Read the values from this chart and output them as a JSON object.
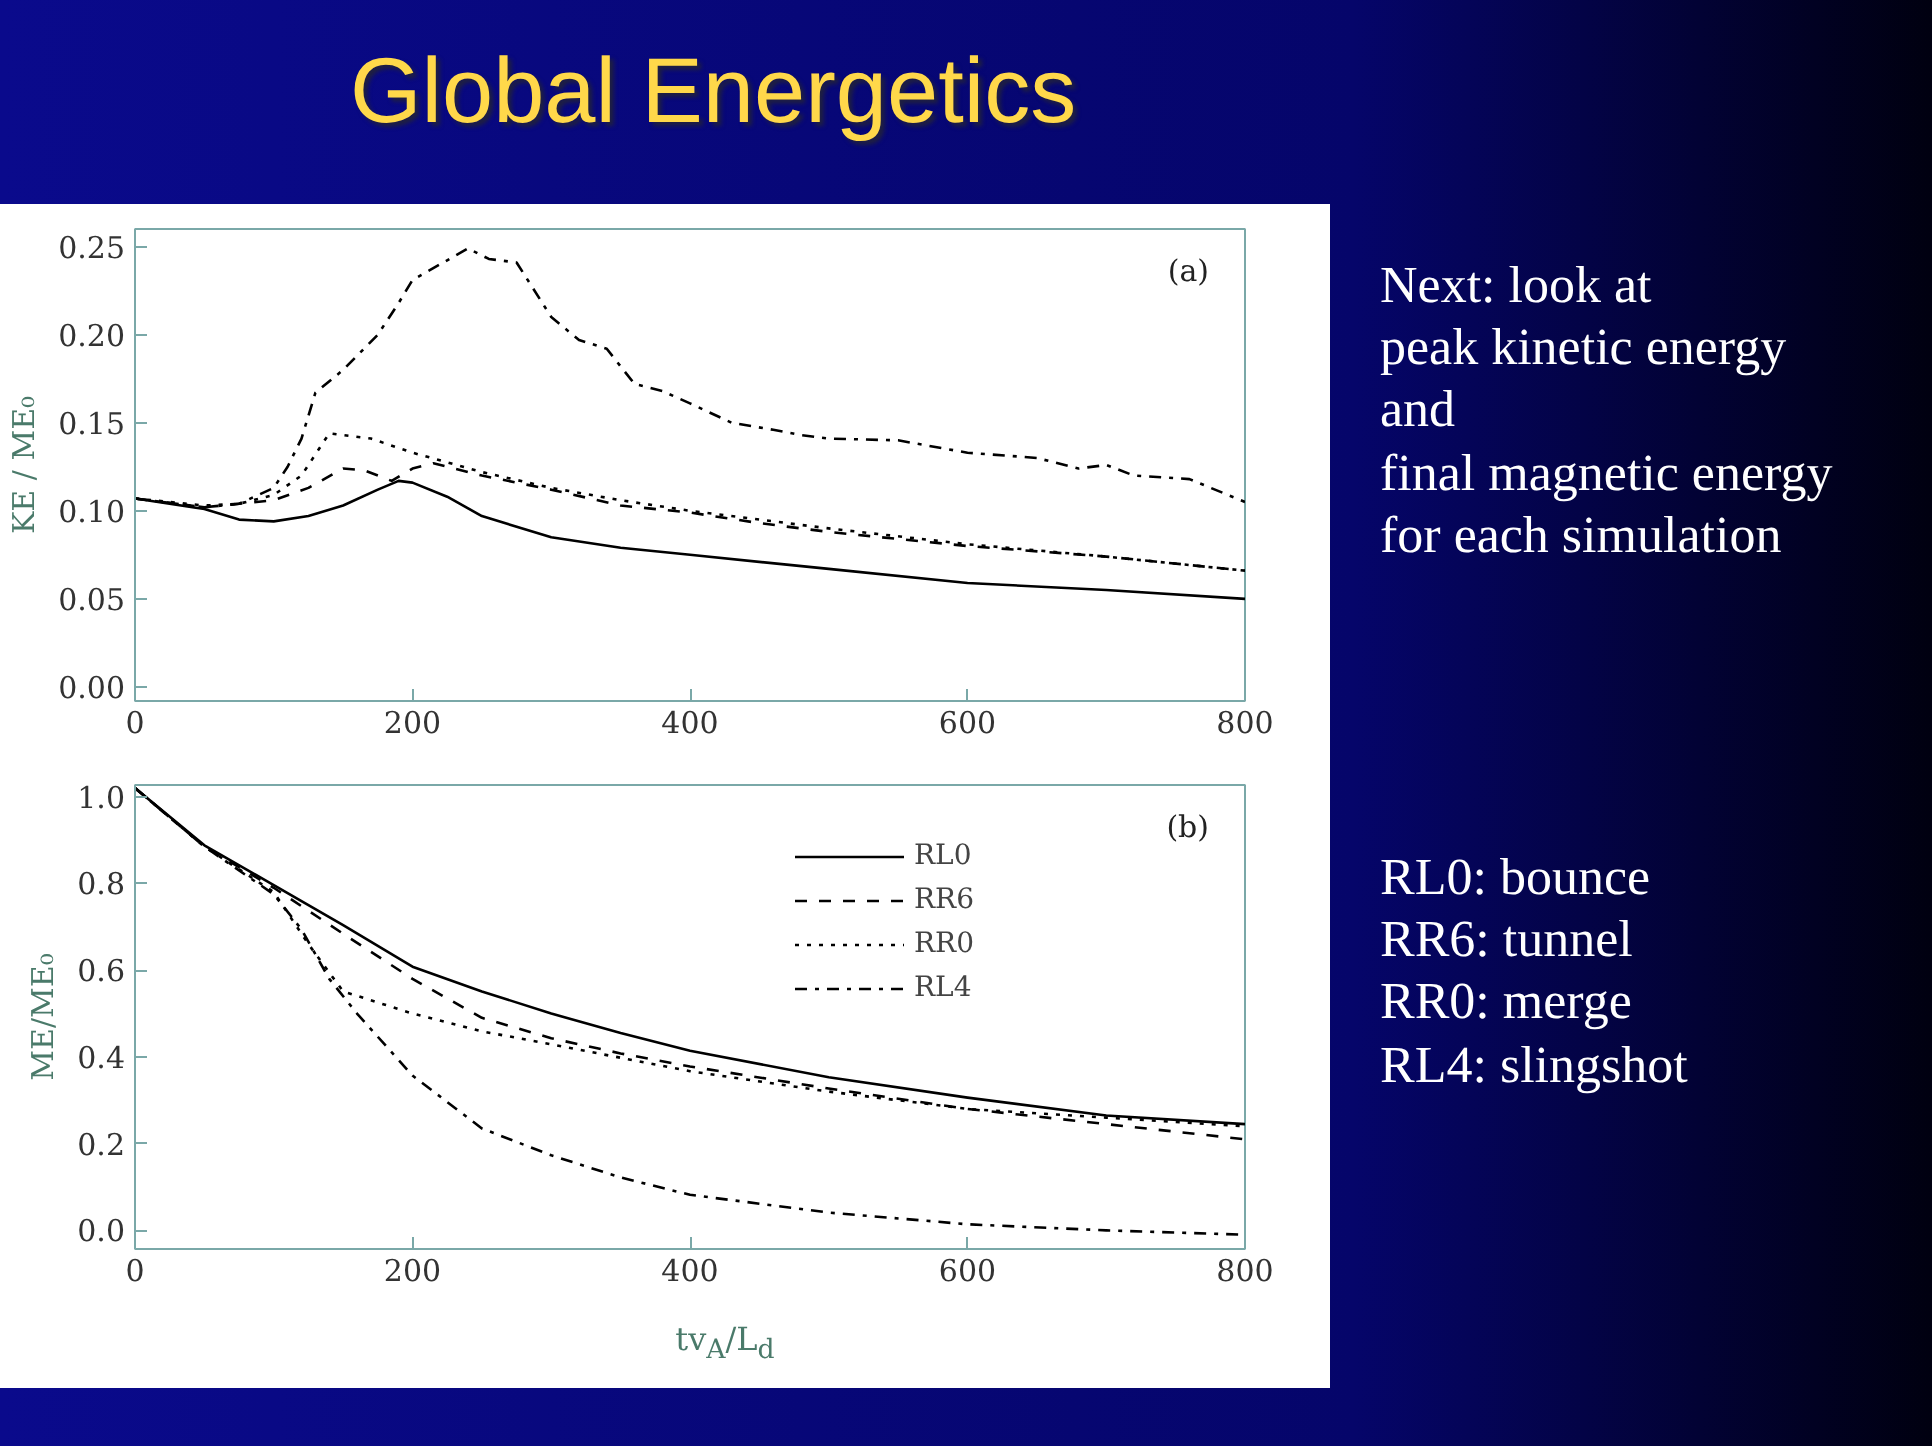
{
  "chart_data": [
    {
      "type": "other",
      "title": "Global Energetics",
      "annotations": [
        "Next: look at\npeak kinetic energy\nand\nfinal magnetic energy\nfor each simulation",
        "RL0: bounce\nRR6: tunnel\nRR0: merge\nRL4: slingshot"
      ]
    },
    {
      "type": "line",
      "ylabel": "KE / ME₀",
      "annotations": [
        "(a)"
      ],
      "xlim": [
        0,
        800
      ],
      "ylim": [
        -0.008,
        0.26
      ],
      "xticks": [
        0,
        200,
        400,
        600,
        800
      ],
      "yticks": [
        {
          "value": 0,
          "label": "0.00"
        },
        {
          "value": 0.05,
          "label": "0.05"
        },
        {
          "value": 0.1,
          "label": "0.10"
        },
        {
          "value": 0.15,
          "label": "0.15"
        },
        {
          "value": 0.2,
          "label": "0.20"
        },
        {
          "value": 0.25,
          "label": "0.25"
        }
      ],
      "grid": false,
      "legend": false,
      "series": [
        {
          "color": "#000000",
          "line_style": "solid",
          "x": [
            0,
            50,
            75,
            100,
            125,
            150,
            175,
            190,
            200,
            225,
            250,
            300,
            350,
            400,
            500,
            600,
            700,
            800
          ],
          "values": [
            0.107,
            0.101,
            0.095,
            0.094,
            0.097,
            0.103,
            0.112,
            0.117,
            0.116,
            0.108,
            0.097,
            0.085,
            0.079,
            0.075,
            0.067,
            0.059,
            0.055,
            0.05
          ]
        },
        {
          "color": "#000000",
          "line_style": "dashed",
          "x": [
            0,
            50,
            75,
            100,
            125,
            150,
            165,
            185,
            200,
            215,
            250,
            300,
            350,
            400,
            450,
            500,
            600,
            700,
            800
          ],
          "values": [
            0.107,
            0.102,
            0.104,
            0.106,
            0.113,
            0.124,
            0.123,
            0.117,
            0.124,
            0.127,
            0.12,
            0.112,
            0.103,
            0.099,
            0.093,
            0.088,
            0.08,
            0.074,
            0.066
          ]
        },
        {
          "color": "#000000",
          "line_style": "dotted",
          "x": [
            0,
            50,
            75,
            100,
            120,
            140,
            170,
            200,
            250,
            300,
            350,
            400,
            500,
            600,
            700,
            800
          ],
          "values": [
            0.107,
            0.103,
            0.104,
            0.109,
            0.12,
            0.144,
            0.141,
            0.133,
            0.122,
            0.113,
            0.106,
            0.1,
            0.09,
            0.081,
            0.074,
            0.066
          ]
        },
        {
          "color": "#000000",
          "line_style": "dashdot",
          "x": [
            0,
            50,
            75,
            100,
            110,
            120,
            130,
            150,
            175,
            190,
            200,
            220,
            240,
            255,
            275,
            300,
            320,
            340,
            360,
            380,
            400,
            430,
            460,
            480,
            500,
            550,
            600,
            650,
            680,
            700,
            720,
            760,
            800
          ],
          "values": [
            0.107,
            0.102,
            0.104,
            0.113,
            0.125,
            0.141,
            0.167,
            0.18,
            0.2,
            0.218,
            0.231,
            0.24,
            0.249,
            0.243,
            0.241,
            0.21,
            0.197,
            0.192,
            0.172,
            0.168,
            0.161,
            0.15,
            0.146,
            0.143,
            0.141,
            0.14,
            0.133,
            0.13,
            0.124,
            0.126,
            0.12,
            0.118,
            0.105
          ]
        }
      ]
    },
    {
      "type": "line",
      "xlabel": "tv$_{A}$/L$_{d}$",
      "ylabel": "ME/ME₀",
      "annotations": [
        "(b)"
      ],
      "xlim": [
        0,
        800
      ],
      "ylim": [
        -0.043,
        1.027
      ],
      "xticks": [
        0,
        200,
        400,
        600,
        800
      ],
      "yticks": [
        {
          "value": 0,
          "label": "0.0"
        },
        {
          "value": 0.2,
          "label": "0.2"
        },
        {
          "value": 0.4,
          "label": "0.4"
        },
        {
          "value": 0.6,
          "label": "0.6"
        },
        {
          "value": 0.8,
          "label": "0.8"
        },
        {
          "value": 1,
          "label": "1.0"
        }
      ],
      "grid": false,
      "legend": "top right",
      "series": [
        {
          "name": "RL0",
          "color": "#000000",
          "line_style": "solid",
          "x": [
            0,
            50,
            100,
            150,
            200,
            250,
            300,
            350,
            400,
            500,
            600,
            700,
            800
          ],
          "values": [
            1.02,
            0.888,
            0.796,
            0.704,
            0.608,
            0.551,
            0.5,
            0.455,
            0.414,
            0.353,
            0.306,
            0.265,
            0.245
          ]
        },
        {
          "name": "RR6",
          "color": "#000000",
          "line_style": "dashed",
          "x": [
            0,
            50,
            100,
            150,
            200,
            250,
            300,
            350,
            400,
            500,
            600,
            700,
            800
          ],
          "values": [
            1.02,
            0.885,
            0.79,
            0.684,
            0.58,
            0.49,
            0.443,
            0.408,
            0.378,
            0.327,
            0.28,
            0.245,
            0.21
          ]
        },
        {
          "name": "RR0",
          "color": "#000000",
          "line_style": "dotted",
          "x": [
            0,
            50,
            100,
            125,
            150,
            200,
            250,
            300,
            400,
            500,
            600,
            700,
            800
          ],
          "values": [
            1.02,
            0.885,
            0.78,
            0.66,
            0.551,
            0.5,
            0.459,
            0.429,
            0.367,
            0.32,
            0.28,
            0.26,
            0.24
          ]
        },
        {
          "name": "RL4",
          "color": "#000000",
          "line_style": "dashdot",
          "x": [
            0,
            50,
            100,
            120,
            140,
            160,
            200,
            250,
            300,
            350,
            400,
            500,
            600,
            700,
            800
          ],
          "values": [
            1.02,
            0.885,
            0.775,
            0.694,
            0.58,
            0.5,
            0.357,
            0.235,
            0.173,
            0.122,
            0.082,
            0.041,
            0.014,
            0.0,
            -0.01
          ]
        }
      ]
    }
  ]
}
